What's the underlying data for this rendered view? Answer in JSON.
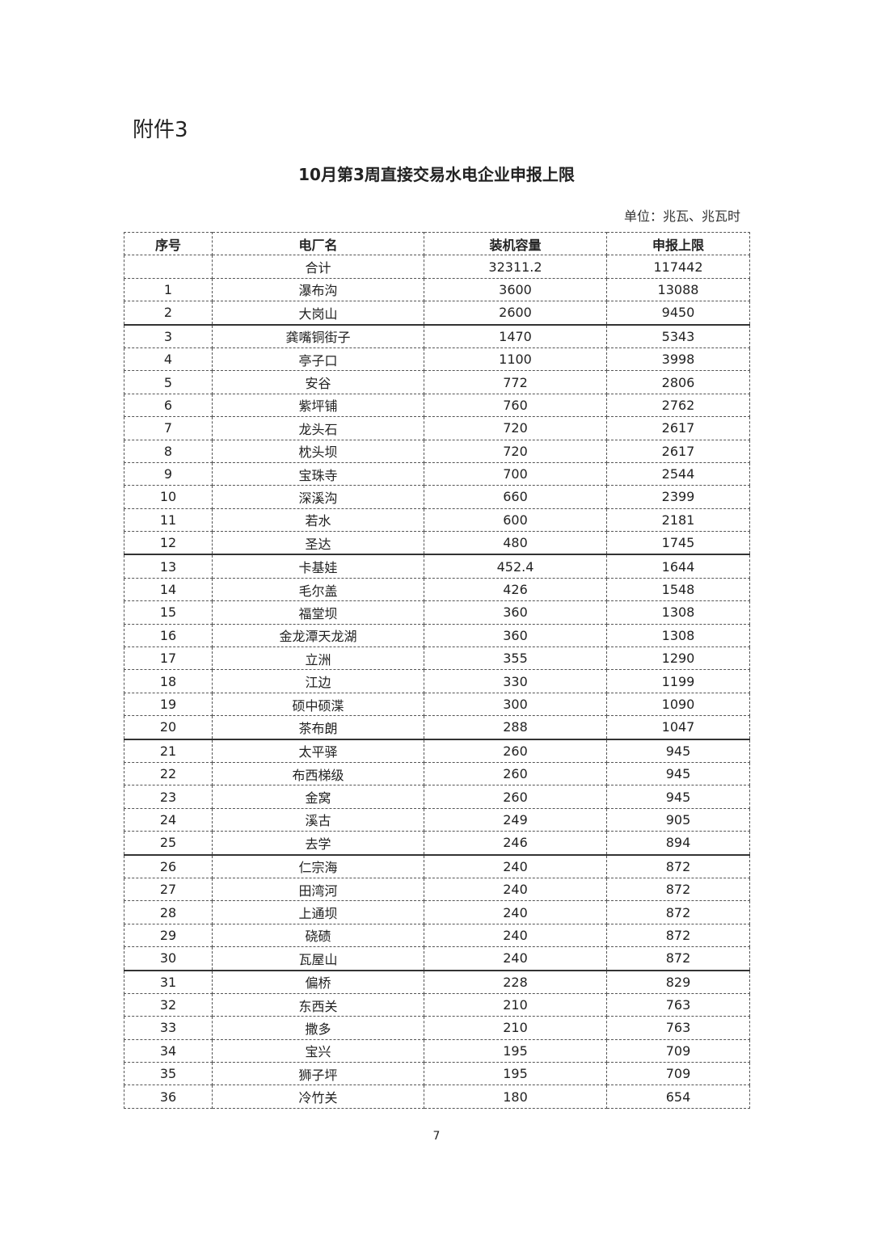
{
  "annex": "附件3",
  "title": "10月第3周直接交易水电企业申报上限",
  "unit": "单位：兆瓦、兆瓦时",
  "table": {
    "headers": [
      "序号",
      "电厂名",
      "装机容量",
      "申报上限"
    ],
    "total": {
      "no": "",
      "name": "合计",
      "capacity": "32311.2",
      "limit": "117442"
    },
    "rows": [
      {
        "no": "1",
        "name": "瀑布沟",
        "capacity": "3600",
        "limit": "13088"
      },
      {
        "no": "2",
        "name": "大岗山",
        "capacity": "2600",
        "limit": "9450"
      },
      {
        "no": "3",
        "name": "龚嘴铜街子",
        "capacity": "1470",
        "limit": "5343"
      },
      {
        "no": "4",
        "name": "亭子口",
        "capacity": "1100",
        "limit": "3998"
      },
      {
        "no": "5",
        "name": "安谷",
        "capacity": "772",
        "limit": "2806"
      },
      {
        "no": "6",
        "name": "紫坪铺",
        "capacity": "760",
        "limit": "2762"
      },
      {
        "no": "7",
        "name": "龙头石",
        "capacity": "720",
        "limit": "2617"
      },
      {
        "no": "8",
        "name": "枕头坝",
        "capacity": "720",
        "limit": "2617"
      },
      {
        "no": "9",
        "name": "宝珠寺",
        "capacity": "700",
        "limit": "2544"
      },
      {
        "no": "10",
        "name": "深溪沟",
        "capacity": "660",
        "limit": "2399"
      },
      {
        "no": "11",
        "name": "若水",
        "capacity": "600",
        "limit": "2181"
      },
      {
        "no": "12",
        "name": "圣达",
        "capacity": "480",
        "limit": "1745"
      },
      {
        "no": "13",
        "name": "卡基娃",
        "capacity": "452.4",
        "limit": "1644"
      },
      {
        "no": "14",
        "name": "毛尔盖",
        "capacity": "426",
        "limit": "1548"
      },
      {
        "no": "15",
        "name": "福堂坝",
        "capacity": "360",
        "limit": "1308"
      },
      {
        "no": "16",
        "name": "金龙潭天龙湖",
        "capacity": "360",
        "limit": "1308"
      },
      {
        "no": "17",
        "name": "立洲",
        "capacity": "355",
        "limit": "1290"
      },
      {
        "no": "18",
        "name": "江边",
        "capacity": "330",
        "limit": "1199"
      },
      {
        "no": "19",
        "name": "硕中硕渫",
        "capacity": "300",
        "limit": "1090"
      },
      {
        "no": "20",
        "name": "茶布朗",
        "capacity": "288",
        "limit": "1047"
      },
      {
        "no": "21",
        "name": "太平驿",
        "capacity": "260",
        "limit": "945"
      },
      {
        "no": "22",
        "name": "布西梯级",
        "capacity": "260",
        "limit": "945"
      },
      {
        "no": "23",
        "name": "金窝",
        "capacity": "260",
        "limit": "945"
      },
      {
        "no": "24",
        "name": "溪古",
        "capacity": "249",
        "limit": "905"
      },
      {
        "no": "25",
        "name": "去学",
        "capacity": "246",
        "limit": "894"
      },
      {
        "no": "26",
        "name": "仁宗海",
        "capacity": "240",
        "limit": "872"
      },
      {
        "no": "27",
        "name": "田湾河",
        "capacity": "240",
        "limit": "872"
      },
      {
        "no": "28",
        "name": "上通坝",
        "capacity": "240",
        "limit": "872"
      },
      {
        "no": "29",
        "name": "硗碛",
        "capacity": "240",
        "limit": "872"
      },
      {
        "no": "30",
        "name": "瓦屋山",
        "capacity": "240",
        "limit": "872"
      },
      {
        "no": "31",
        "name": "偏桥",
        "capacity": "228",
        "limit": "829"
      },
      {
        "no": "32",
        "name": "东西关",
        "capacity": "210",
        "limit": "763"
      },
      {
        "no": "33",
        "name": "撒多",
        "capacity": "210",
        "limit": "763"
      },
      {
        "no": "34",
        "name": "宝兴",
        "capacity": "195",
        "limit": "709"
      },
      {
        "no": "35",
        "name": "狮子坪",
        "capacity": "195",
        "limit": "709"
      },
      {
        "no": "36",
        "name": "冷竹关",
        "capacity": "180",
        "limit": "654"
      }
    ]
  },
  "page_number": "7"
}
